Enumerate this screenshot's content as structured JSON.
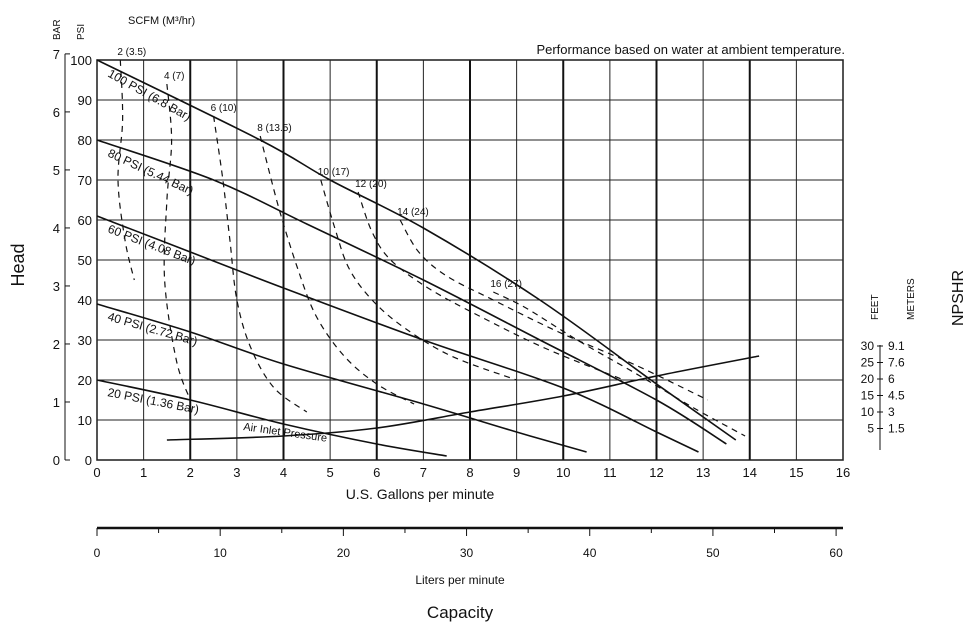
{
  "chart_data": {
    "type": "line",
    "title": "Performance based on water at ambient temperature.",
    "xlabel": "U.S. Gallons per minute",
    "x2label": "Liters per minute",
    "capacity_label": "Capacity",
    "ylabel": "Head",
    "y_psi_unit": "PSI",
    "y_bar_unit": "BAR",
    "scfm_label": "SCFM (M³/hr)",
    "npshr_label": "NPSHR",
    "npshr_feet_unit": "FEET",
    "npshr_meters_unit": "METERS",
    "xlim": [
      0,
      16
    ],
    "ylim": [
      0,
      100
    ],
    "x_ticks": [
      "0",
      "1",
      "2",
      "3",
      "4",
      "5",
      "6",
      "7",
      "8",
      "9",
      "10",
      "11",
      "12",
      "13",
      "14",
      "15",
      "16"
    ],
    "lpm_ticks": [
      "0",
      "10",
      "20",
      "30",
      "40",
      "50",
      "60"
    ],
    "psi_ticks": [
      "0",
      "10",
      "20",
      "30",
      "40",
      "50",
      "60",
      "70",
      "80",
      "90",
      "100"
    ],
    "bar_ticks": [
      "0",
      "1",
      "2",
      "3",
      "4",
      "5",
      "6",
      "7"
    ],
    "npshr_feet_ticks": [
      "30",
      "25",
      "20",
      "15",
      "10",
      "5"
    ],
    "npshr_meters_ticks": [
      "9.1",
      "7.6",
      "6",
      "4.5",
      "3",
      "1.5"
    ],
    "series": [
      {
        "name": "100 PSI (6.8 Bar)",
        "x": [
          0,
          3.5,
          5,
          7,
          9.5,
          12,
          13.7
        ],
        "y": [
          100,
          80,
          70,
          58,
          40,
          19,
          5
        ]
      },
      {
        "name": "80 PSI (5.44 Bar)",
        "x": [
          0,
          2.5,
          4.5,
          7,
          9.5,
          12,
          13.5
        ],
        "y": [
          80,
          70,
          59,
          45,
          30,
          15,
          4
        ]
      },
      {
        "name": "60 PSI (4.08 Bar)",
        "x": [
          0,
          2,
          4,
          7,
          10,
          12,
          12.9
        ],
        "y": [
          61,
          52,
          43,
          30,
          18,
          7,
          2
        ]
      },
      {
        "name": "40 PSI (2.72 Bar)",
        "x": [
          0,
          2,
          4,
          7,
          9,
          10.5
        ],
        "y": [
          39,
          32,
          24,
          14,
          7,
          2
        ]
      },
      {
        "name": "20 PSI (1.36 Bar)",
        "x": [
          0,
          2,
          4,
          6,
          7.5
        ],
        "y": [
          20,
          15,
          9,
          4,
          1
        ]
      }
    ],
    "air_inlet_label": "Air Inlet Pressure",
    "air_flow_curves": [
      {
        "label": "2 (3.5)",
        "x": [
          0.5,
          0.55,
          0.45,
          0.6,
          0.8
        ],
        "y": [
          100,
          85,
          70,
          55,
          45
        ]
      },
      {
        "label": "4 (7)",
        "x": [
          1.5,
          1.6,
          1.5,
          1.45,
          1.7,
          2.0
        ],
        "y": [
          94,
          80,
          65,
          45,
          25,
          15
        ]
      },
      {
        "label": "6 (10)",
        "x": [
          2.5,
          2.7,
          2.85,
          3.0,
          3.3,
          3.8,
          4.5
        ],
        "y": [
          86,
          70,
          55,
          40,
          28,
          18,
          12
        ]
      },
      {
        "label": "8 (13.5)",
        "x": [
          3.5,
          3.9,
          4.3,
          4.7,
          5.3,
          6.0,
          6.8
        ],
        "y": [
          81,
          63,
          48,
          36,
          26,
          19,
          14
        ]
      },
      {
        "label": "10 (17)",
        "x": [
          4.8,
          5.1,
          5.4,
          5.9,
          6.6,
          7.6,
          9.0
        ],
        "y": [
          70,
          58,
          48,
          40,
          33,
          26,
          20
        ]
      },
      {
        "label": "12 (20)",
        "x": [
          5.6,
          5.9,
          6.3,
          7.1,
          8.2,
          9.6,
          11.3
        ],
        "y": [
          67,
          57,
          50,
          43,
          36,
          28,
          20
        ]
      },
      {
        "label": "14 (24)",
        "x": [
          6.5,
          6.9,
          7.5,
          8.5,
          9.9,
          11.5,
          13.1
        ],
        "y": [
          60,
          52,
          46,
          40,
          32,
          24,
          15
        ]
      },
      {
        "label": "16 (27)",
        "x": [
          8.5,
          9.2,
          10.3,
          11.5,
          12.8,
          13.9
        ],
        "y": [
          42,
          38,
          30,
          22,
          13,
          6
        ]
      }
    ],
    "npshr_curve": {
      "x": [
        1.5,
        4,
        6,
        8,
        10,
        12,
        14.2
      ],
      "y": [
        5,
        6,
        8,
        12,
        16,
        21,
        26
      ]
    }
  }
}
